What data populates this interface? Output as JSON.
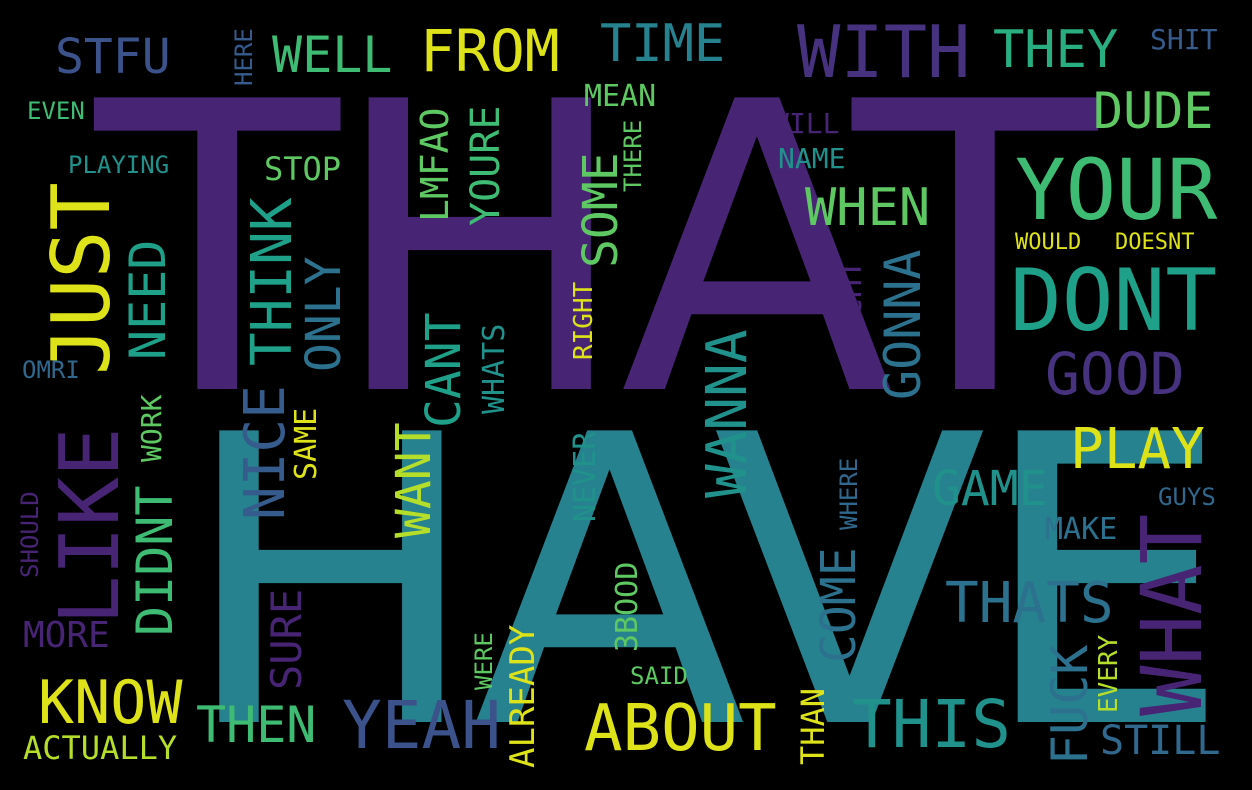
{
  "palette": {
    "background": "#000000",
    "deep_purple": "#482475",
    "purple": "#46327e",
    "indigo": "#3b528b",
    "blue": "#365c8d",
    "steel_blue": "#31688e",
    "teal_blue": "#2c728e",
    "teal": "#26828e",
    "teal_green": "#21918c",
    "sea_green": "#1fa088",
    "green": "#28ae80",
    "light_green": "#3fbc73",
    "lime_green": "#5ec962",
    "yellow_green": "#b5de2b",
    "yellow": "#dde318"
  },
  "words": {
    "that": "THAT",
    "have": "HAVE",
    "stfu": "STFU",
    "here": "HERE",
    "well": "WELL",
    "from": "FROM",
    "time": "TIME",
    "with": "WITH",
    "they": "THEY",
    "shit": "SHIT",
    "even": "EVEN",
    "mean": "MEAN",
    "dude": "DUDE",
    "will": "WILL",
    "there": "THERE",
    "name": "NAME",
    "playing": "PLAYING",
    "stop": "STOP",
    "lmfao": "LMFAO",
    "youre": "YOURE",
    "your": "YOUR",
    "some": "SOME",
    "when": "WHEN",
    "just": "JUST",
    "think": "THINK",
    "need": "NEED",
    "would": "WOULD",
    "doesnt": "DOESNT",
    "dont": "DONT",
    "only": "ONLY",
    "nicht": "NICHT",
    "gonna": "GONNA",
    "right": "RIGHT",
    "cant": "CANT",
    "omri": "OMRI",
    "whats": "WHATS",
    "good": "GOOD",
    "wanna": "WANNA",
    "like": "LIKE",
    "work": "WORK",
    "nice": "NICE",
    "same": "SAME",
    "play": "PLAY",
    "didnt": "DIDNT",
    "want": "WANT",
    "never": "NEVER",
    "game": "GAME",
    "where": "WHERE",
    "guys": "GUYS",
    "should": "SHOULD",
    "make": "MAKE",
    "what": "WHAT",
    "come": "COME",
    "thats": "THATS",
    "more": "MORE",
    "sure": "SURE",
    "3bood": "3BOOD",
    "were": "WERE",
    "already": "ALREADY",
    "said": "SAID",
    "fuck": "FUCK",
    "every": "EVERY",
    "know": "KNOW",
    "then": "THEN",
    "yeah": "YEAH",
    "about": "ABOUT",
    "this": "THIS",
    "than": "THAN",
    "still": "STILL",
    "actually": "ACTUALLY"
  }
}
